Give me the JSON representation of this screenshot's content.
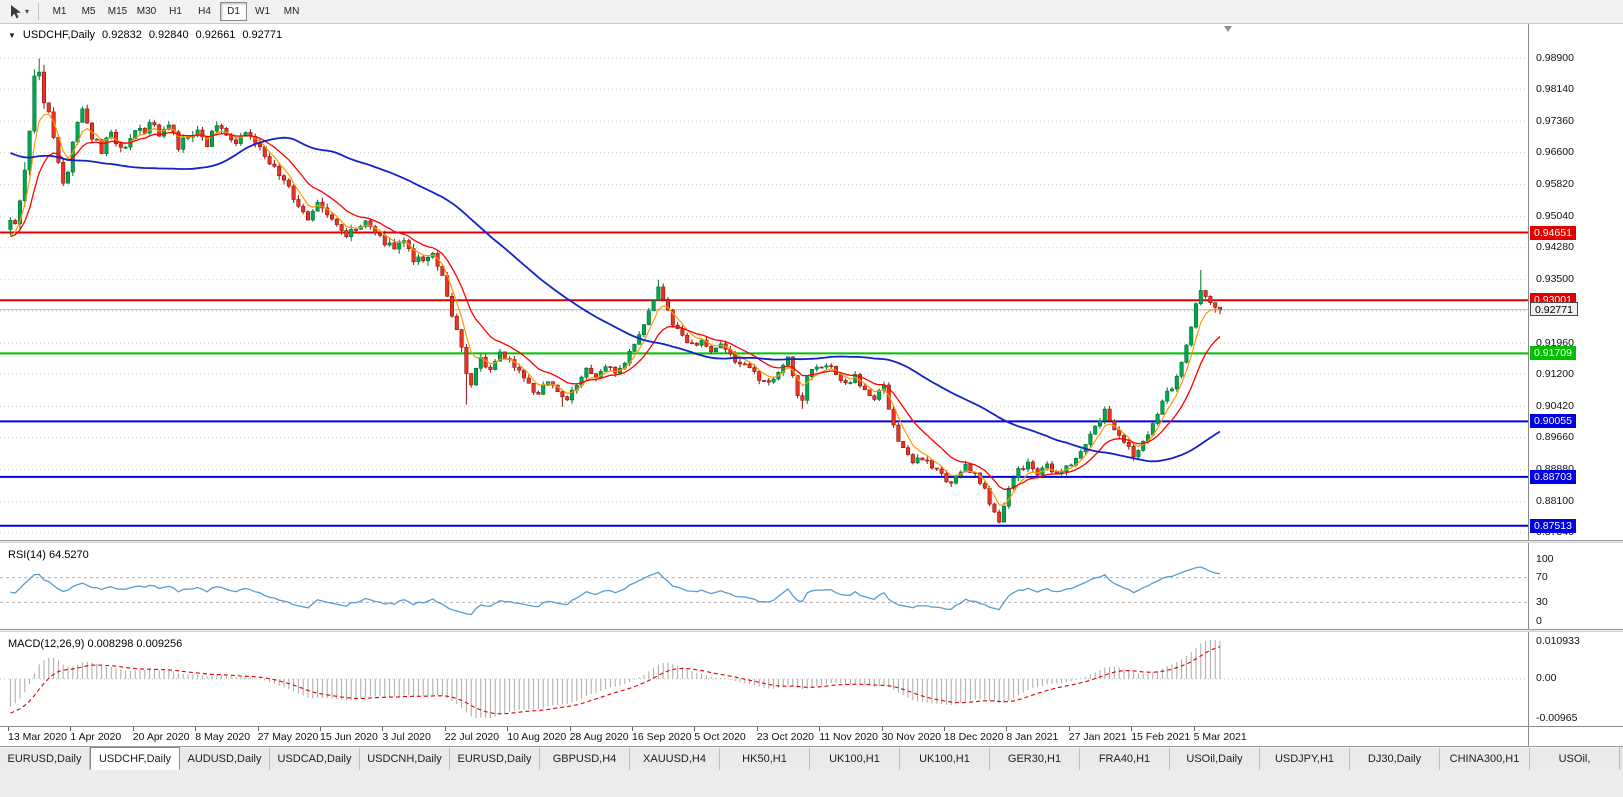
{
  "toolbar": {
    "timeframes": [
      "M1",
      "M5",
      "M15",
      "M30",
      "H1",
      "H4",
      "D1",
      "W1",
      "MN"
    ],
    "active_timeframe": "D1"
  },
  "quote_line": {
    "collapse_icon": "▼",
    "symbol": "USDCHF,Daily",
    "open": "0.92832",
    "high": "0.92840",
    "low": "0.92661",
    "close": "0.92771"
  },
  "panels": {
    "rsi_label": "RSI(14) 64.5270",
    "macd_label": "MACD(12,26,9) 0.008298 0.009256"
  },
  "tabs": {
    "items": [
      "EURUSD,Daily",
      "USDCHF,Daily",
      "AUDUSD,Daily",
      "USDCAD,Daily",
      "USDCNH,Daily",
      "EURUSD,Daily",
      "GBPUSD,H4",
      "XAUUSD,H4",
      "HK50,H1",
      "UK100,H1",
      "UK100,H1",
      "GER30,H1",
      "FRA40,H1",
      "USOil,Daily",
      "USDJPY,H1",
      "DJ30,Daily",
      "CHINA300,H1",
      "USOil,"
    ],
    "active_index": 1
  },
  "chart_data": {
    "type": "candlestick",
    "symbol": "USDCHF",
    "timeframe": "Daily",
    "quote": {
      "open": 0.92832,
      "high": 0.9284,
      "low": 0.92661,
      "close": 0.92771
    },
    "y_ticks": [
      "0.98900",
      "0.98140",
      "0.97360",
      "0.96600",
      "0.95820",
      "0.95040",
      "0.94280",
      "0.93500",
      "0.92740",
      "0.91960",
      "0.91200",
      "0.90420",
      "0.89660",
      "0.88880",
      "0.88100",
      "0.87340"
    ],
    "x_ticks": [
      "13 Mar 2020",
      "1 Apr 2020",
      "20 Apr 2020",
      "8 May 2020",
      "27 May 2020",
      "15 Jun 2020",
      "3 Jul 2020",
      "22 Jul 2020",
      "10 Aug 2020",
      "28 Aug 2020",
      "16 Sep 2020",
      "5 Oct 2020",
      "23 Oct 2020",
      "11 Nov 2020",
      "30 Nov 2020",
      "18 Dec 2020",
      "8 Jan 2021",
      "27 Jan 2021",
      "15 Feb 2021",
      "5 Mar 2021"
    ],
    "horizontal_levels": [
      {
        "price": 0.94651,
        "label": "0.94651",
        "color": "#e00000"
      },
      {
        "price": 0.93001,
        "label": "0.93001",
        "color": "#e00000"
      },
      {
        "price": 0.91709,
        "label": "0.91709",
        "color": "#00c000"
      },
      {
        "price": 0.90055,
        "label": "0.90055",
        "color": "#0000e0"
      },
      {
        "price": 0.88703,
        "label": "0.88703",
        "color": "#0000e0"
      },
      {
        "price": 0.87513,
        "label": "0.87513",
        "color": "#0000e0"
      }
    ],
    "current_price": {
      "value": 0.92771,
      "label": "0.92771"
    },
    "colors": {
      "up": "#00a651",
      "up_border": "#00722f",
      "down": "#ea3323",
      "down_border": "#8f130b",
      "ma_fast": "#ff9900",
      "ma_mid": "#ff0000",
      "ma_slow": "#0f23c8",
      "grid": "#cdcdcd",
      "rsi_line": "#5b9bd5",
      "macd_hist": "#a8a8a8",
      "macd_signal": "#e00000",
      "current_line": "#b4b4b4"
    },
    "candle_count": 253,
    "close_trajectory": [
      [
        0,
        0.95
      ],
      [
        1,
        0.9478
      ],
      [
        2,
        0.953
      ],
      [
        3,
        0.962
      ],
      [
        4,
        0.971
      ],
      [
        5,
        0.984
      ],
      [
        6,
        0.9868
      ],
      [
        7,
        0.979
      ],
      [
        8,
        0.9745
      ],
      [
        9,
        0.97
      ],
      [
        10,
        0.964
      ],
      [
        11,
        0.958
      ],
      [
        12,
        0.9615
      ],
      [
        13,
        0.968
      ],
      [
        14,
        0.973
      ],
      [
        15,
        0.9775
      ],
      [
        16,
        0.974
      ],
      [
        17,
        0.97
      ],
      [
        18,
        0.9685
      ],
      [
        19,
        0.966
      ],
      [
        20,
        0.969
      ],
      [
        21,
        0.9705
      ],
      [
        22,
        0.968
      ],
      [
        23,
        0.9668
      ],
      [
        25,
        0.9695
      ],
      [
        26,
        0.972
      ],
      [
        28,
        0.97
      ],
      [
        29,
        0.9742
      ],
      [
        31,
        0.9705
      ],
      [
        33,
        0.973
      ],
      [
        35,
        0.9672
      ],
      [
        37,
        0.97
      ],
      [
        39,
        0.9712
      ],
      [
        41,
        0.9682
      ],
      [
        43,
        0.9728
      ],
      [
        45,
        0.97
      ],
      [
        47,
        0.9672
      ],
      [
        49,
        0.9712
      ],
      [
        51,
        0.9692
      ],
      [
        52,
        0.9678
      ],
      [
        54,
        0.9632
      ],
      [
        56,
        0.9608
      ],
      [
        58,
        0.9572
      ],
      [
        60,
        0.9532
      ],
      [
        62,
        0.9502
      ],
      [
        64,
        0.9538
      ],
      [
        66,
        0.9512
      ],
      [
        68,
        0.9482
      ],
      [
        70,
        0.9452
      ],
      [
        72,
        0.9478
      ],
      [
        74,
        0.9498
      ],
      [
        76,
        0.947
      ],
      [
        78,
        0.944
      ],
      [
        80,
        0.9422
      ],
      [
        82,
        0.9438
      ],
      [
        84,
        0.9402
      ],
      [
        86,
        0.939
      ],
      [
        88,
        0.9408
      ],
      [
        90,
        0.9368
      ],
      [
        91,
        0.9312
      ],
      [
        92,
        0.9262
      ],
      [
        93,
        0.9228
      ],
      [
        94,
        0.918
      ],
      [
        95,
        0.9128
      ],
      [
        96,
        0.9092
      ],
      [
        97,
        0.9138
      ],
      [
        98,
        0.9158
      ],
      [
        100,
        0.9132
      ],
      [
        102,
        0.9172
      ],
      [
        104,
        0.9158
      ],
      [
        106,
        0.9128
      ],
      [
        108,
        0.9096
      ],
      [
        110,
        0.9066
      ],
      [
        112,
        0.9108
      ],
      [
        114,
        0.9072
      ],
      [
        116,
        0.9056
      ],
      [
        118,
        0.9098
      ],
      [
        120,
        0.9138
      ],
      [
        122,
        0.9112
      ],
      [
        124,
        0.9142
      ],
      [
        126,
        0.9118
      ],
      [
        128,
        0.9152
      ],
      [
        130,
        0.9188
      ],
      [
        132,
        0.9248
      ],
      [
        134,
        0.9298
      ],
      [
        135,
        0.9328
      ],
      [
        136,
        0.9308
      ],
      [
        137,
        0.9272
      ],
      [
        138,
        0.9242
      ],
      [
        140,
        0.9215
      ],
      [
        142,
        0.919
      ],
      [
        144,
        0.9205
      ],
      [
        146,
        0.9172
      ],
      [
        148,
        0.9198
      ],
      [
        150,
        0.9162
      ],
      [
        152,
        0.9146
      ],
      [
        154,
        0.913
      ],
      [
        156,
        0.9112
      ],
      [
        158,
        0.9096
      ],
      [
        160,
        0.9128
      ],
      [
        162,
        0.9162
      ],
      [
        163,
        0.912
      ],
      [
        164,
        0.9072
      ],
      [
        165,
        0.905
      ],
      [
        166,
        0.9118
      ],
      [
        168,
        0.9134
      ],
      [
        170,
        0.9148
      ],
      [
        172,
        0.9122
      ],
      [
        174,
        0.91
      ],
      [
        176,
        0.9114
      ],
      [
        178,
        0.9082
      ],
      [
        180,
        0.9062
      ],
      [
        182,
        0.9088
      ],
      [
        184,
        0.8992
      ],
      [
        186,
        0.8936
      ],
      [
        188,
        0.8906
      ],
      [
        190,
        0.8916
      ],
      [
        192,
        0.8892
      ],
      [
        194,
        0.8872
      ],
      [
        195,
        0.8852
      ],
      [
        197,
        0.8866
      ],
      [
        199,
        0.8898
      ],
      [
        201,
        0.8876
      ],
      [
        203,
        0.8842
      ],
      [
        205,
        0.8778
      ],
      [
        206,
        0.8762
      ],
      [
        207,
        0.88
      ],
      [
        208,
        0.8848
      ],
      [
        210,
        0.8888
      ],
      [
        212,
        0.8904
      ],
      [
        214,
        0.8882
      ],
      [
        216,
        0.8904
      ],
      [
        218,
        0.8872
      ],
      [
        220,
        0.889
      ],
      [
        221,
        0.8906
      ],
      [
        223,
        0.8926
      ],
      [
        225,
        0.898
      ],
      [
        227,
        0.9012
      ],
      [
        228,
        0.9034
      ],
      [
        230,
        0.8992
      ],
      [
        232,
        0.8952
      ],
      [
        234,
        0.8922
      ],
      [
        236,
        0.8962
      ],
      [
        238,
        0.8996
      ],
      [
        240,
        0.9058
      ],
      [
        242,
        0.9086
      ],
      [
        244,
        0.915
      ],
      [
        245,
        0.9196
      ],
      [
        246,
        0.9242
      ],
      [
        247,
        0.9286
      ],
      [
        248,
        0.933
      ],
      [
        249,
        0.9306
      ],
      [
        250,
        0.9292
      ],
      [
        251,
        0.9284
      ],
      [
        252,
        0.92771
      ]
    ],
    "warmup_trajectory": [
      [
        -60,
        0.972
      ],
      [
        -45,
        0.9762
      ],
      [
        -30,
        0.9778
      ],
      [
        -18,
        0.97
      ],
      [
        -12,
        0.9558
      ],
      [
        -9,
        0.932
      ],
      [
        -7,
        0.9262
      ],
      [
        -5,
        0.938
      ],
      [
        -3,
        0.9442
      ],
      [
        -1,
        0.9482
      ]
    ],
    "wick_events": [
      {
        "i": 6,
        "high": 0.9889
      },
      {
        "i": 95,
        "low": 0.9046
      },
      {
        "i": 115,
        "low": 0.9041
      },
      {
        "i": 135,
        "high": 0.935
      },
      {
        "i": 165,
        "low": 0.9036
      },
      {
        "i": 206,
        "low": 0.8757
      },
      {
        "i": 248,
        "high": 0.9374
      }
    ],
    "moving_averages": [
      {
        "name": "fast",
        "period": 5,
        "method": "ema"
      },
      {
        "name": "mid",
        "period": 13,
        "method": "ema"
      },
      {
        "name": "slow",
        "period": 55,
        "method": "sma"
      }
    ],
    "indicators": [
      {
        "name": "RSI",
        "params": "14",
        "value_display": "64.5270",
        "levels": [
          70,
          30
        ],
        "scale_ticks": [
          "100",
          "70",
          "30",
          "0"
        ]
      },
      {
        "name": "MACD",
        "params": "12,26,9",
        "values_display": "0.008298 0.009256",
        "scale_top": "0.010933",
        "scale_zero": "0.00",
        "scale_bottom": "-0.00965"
      }
    ]
  }
}
